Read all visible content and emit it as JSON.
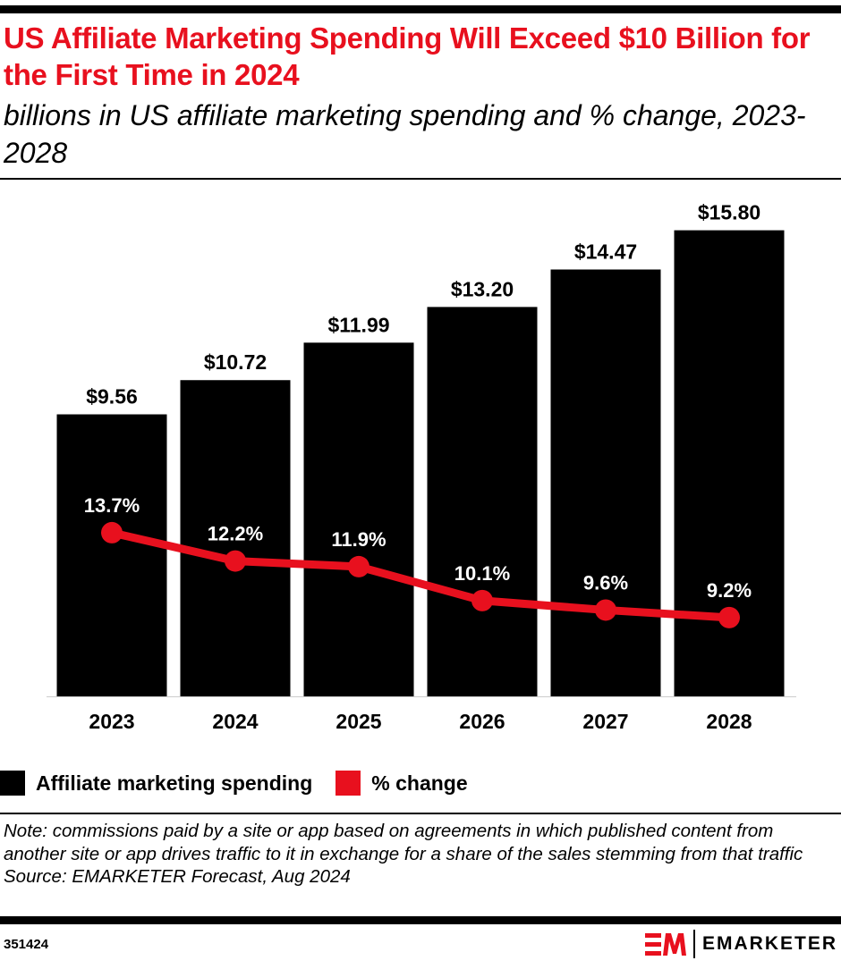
{
  "header": {
    "title": "US Affiliate Marketing Spending Will Exceed $10 Billion for the First Time in 2024",
    "subtitle": "billions in US affiliate marketing spending and % change, 2023-2028"
  },
  "chart_data": {
    "type": "bar",
    "categories": [
      "2023",
      "2024",
      "2025",
      "2026",
      "2027",
      "2028"
    ],
    "series": [
      {
        "name": "Affiliate marketing spending",
        "type": "bar",
        "values": [
          9.56,
          10.72,
          11.99,
          13.2,
          14.47,
          15.8
        ],
        "labels": [
          "$9.56",
          "$10.72",
          "$11.99",
          "$13.20",
          "$14.47",
          "$15.80"
        ],
        "color": "#000000"
      },
      {
        "name": "% change",
        "type": "line",
        "values": [
          13.7,
          12.2,
          11.9,
          10.1,
          9.6,
          9.2
        ],
        "labels": [
          "13.7%",
          "12.2%",
          "11.9%",
          "10.1%",
          "9.6%",
          "9.2%"
        ],
        "color": "#e8101e"
      }
    ],
    "legend": "bottom-left",
    "grid": false
  },
  "legend": {
    "items": [
      "Affiliate marketing spending",
      "% change"
    ]
  },
  "footer": {
    "note": "Note: commissions paid by a site or app based on agreements in which published content from another site or app drives traffic to it in exchange for a share of the sales stemming from that traffic",
    "source": "Source: EMARKETER Forecast, Aug 2024",
    "id": "351424",
    "brand": "EMARKETER"
  },
  "colors": {
    "accent": "#e8101e"
  }
}
